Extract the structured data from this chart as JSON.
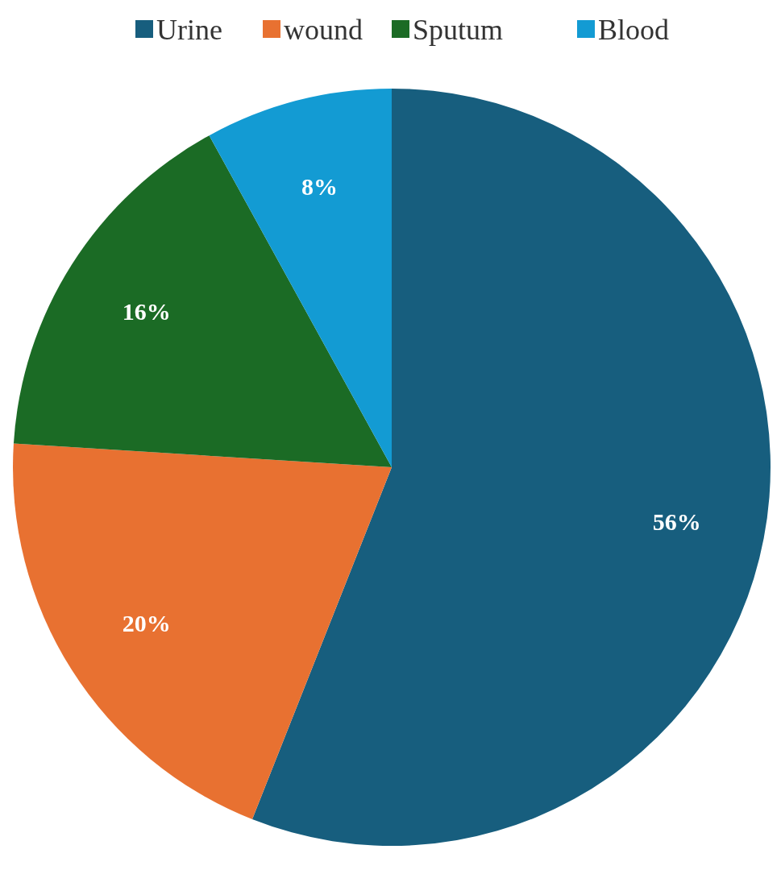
{
  "chart_data": {
    "type": "pie",
    "categories": [
      "Urine",
      "wound",
      "Sputum",
      "Blood"
    ],
    "values": [
      56,
      20,
      16,
      8
    ],
    "colors": [
      "#175e7e",
      "#e87131",
      "#1b6b25",
      "#139bd3"
    ],
    "value_labels": [
      "56%",
      "20%",
      "16%",
      "8%"
    ],
    "legend": "top"
  }
}
